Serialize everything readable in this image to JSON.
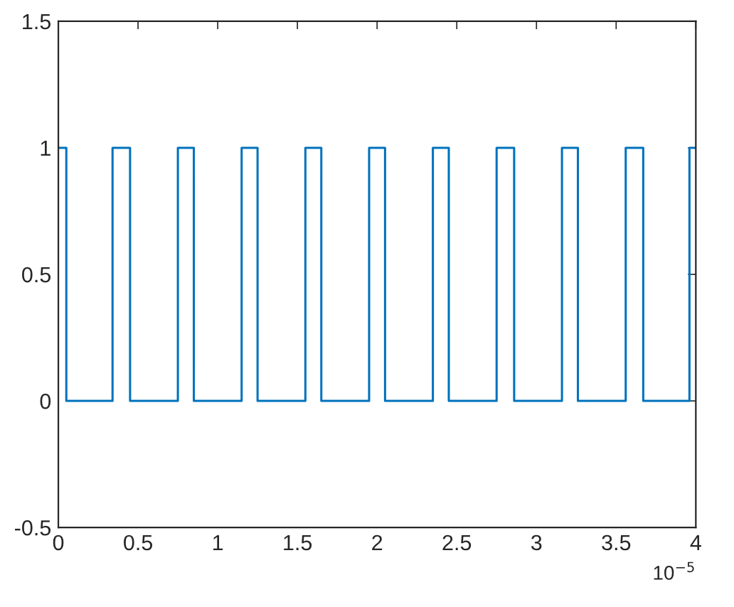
{
  "chart_data": {
    "type": "step",
    "x": [
      0,
      0.05,
      0.34,
      0.45,
      0.75,
      0.85,
      1.15,
      1.25,
      1.55,
      1.65,
      1.95,
      2.05,
      2.35,
      2.45,
      2.75,
      2.86,
      3.16,
      3.26,
      3.56,
      3.67,
      3.96,
      4
    ],
    "series": [
      {
        "color": "#0072bd",
        "values": [
          1,
          0,
          1,
          0,
          1,
          0,
          1,
          0,
          1,
          0,
          1,
          0,
          1,
          0,
          1,
          0,
          1,
          0,
          1,
          0,
          1,
          1
        ]
      }
    ],
    "xlim": [
      0,
      4
    ],
    "xticks": [
      0,
      0.5,
      1,
      1.5,
      2,
      2.5,
      3,
      3.5,
      4
    ],
    "ylim": [
      -0.5,
      1.5
    ],
    "yticks": [
      -0.5,
      0,
      0.5,
      1,
      1.5
    ],
    "annotations": [
      "10$^{−5}$"
    ],
    "grid": false,
    "line_style": "solid",
    "marker": "none"
  }
}
